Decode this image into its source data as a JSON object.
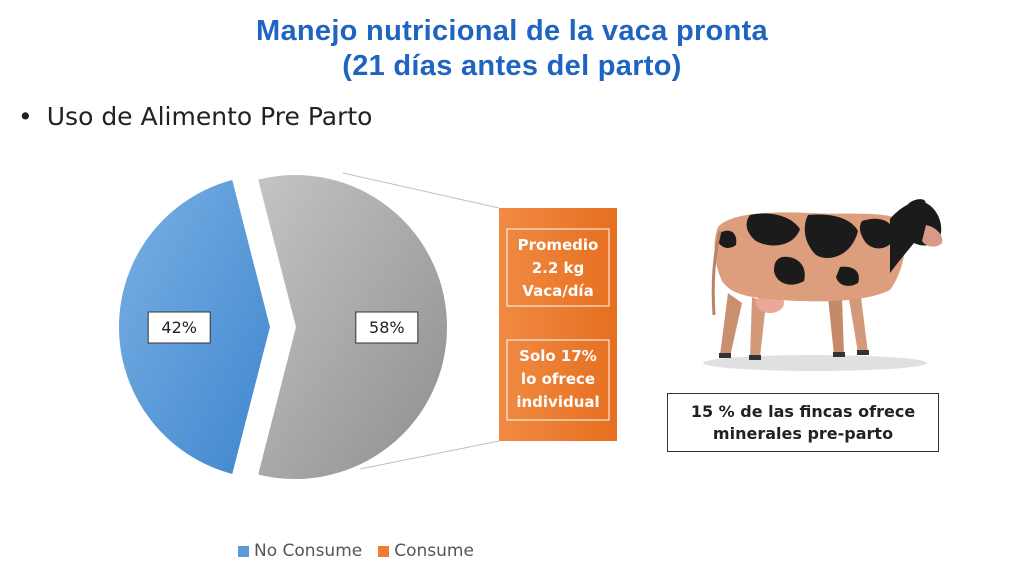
{
  "header": {
    "title_line1": "Manejo nutricional de la vaca pronta",
    "title_line2": "(21 días antes del parto)"
  },
  "bullet": {
    "text": "Uso de Alimento Pre Parto"
  },
  "chart_data": {
    "type": "pie",
    "categories": [
      "No Consume",
      "Consume"
    ],
    "values": [
      42,
      58
    ],
    "data_labels": [
      "42%",
      "58%"
    ],
    "colors": {
      "No Consume": "#5b9bd5",
      "Consume": "#ed7d31",
      "exploded_slice": "#a6a6a6"
    },
    "legend_position": "bottom",
    "bar_of_pie": {
      "segments": [
        {
          "label_lines": [
            "Promedio",
            "2.2 kg",
            "Vaca/día"
          ]
        },
        {
          "label_lines": [
            "Solo 17%",
            "lo ofrece",
            "individual"
          ]
        }
      ]
    }
  },
  "callout": {
    "line1": "15 % de las fincas ofrece",
    "line2": "minerales pre-parto"
  },
  "image": {
    "icon": "cow-photo"
  }
}
